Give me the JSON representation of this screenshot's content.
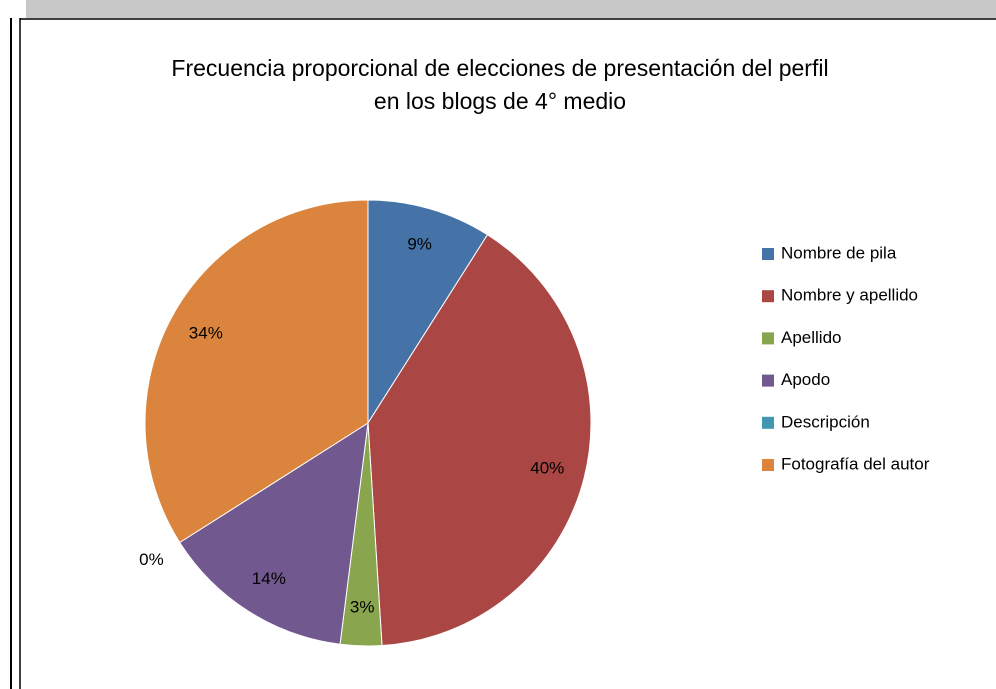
{
  "chart_data": {
    "type": "pie",
    "title": [
      "Frecuencia proporcional de elecciones de presentación del perfil",
      "en los blogs de 4° medio"
    ],
    "categories": [
      "Nombre de pila",
      "Nombre y apellido",
      "Apellido",
      "Apodo",
      "Descripción",
      "Fotografía del autor"
    ],
    "values": [
      9,
      40,
      3,
      14,
      0,
      34
    ],
    "value_labels": [
      "9%",
      "40%",
      "3%",
      "14%",
      "0%",
      "34%"
    ],
    "colors": [
      "#4572a7",
      "#aa4643",
      "#89a54e",
      "#71588f",
      "#4198af",
      "#db843d"
    ],
    "legend": "right"
  }
}
